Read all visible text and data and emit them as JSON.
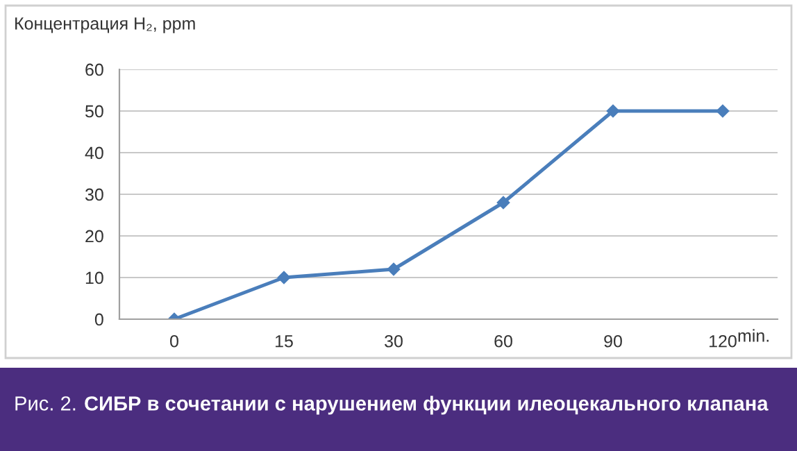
{
  "chart_data": {
    "type": "line",
    "ylabel": "Концентрация H₂, ppm",
    "xlabel": "min.",
    "categories": [
      "0",
      "15",
      "30",
      "60",
      "90",
      "120"
    ],
    "series": [
      {
        "color": "#4a7ebb",
        "values": [
          0,
          10,
          12,
          28,
          50,
          50
        ]
      }
    ],
    "ylim": [
      0,
      60
    ],
    "yticks": [
      0,
      10,
      20,
      30,
      40,
      50,
      60
    ],
    "grid": "y",
    "marker": "diamond",
    "line_style": "solid",
    "annotations": [
      "Рис. 2.",
      "СИБР в сочетании с нарушением функции илеоцекального клапана"
    ]
  }
}
